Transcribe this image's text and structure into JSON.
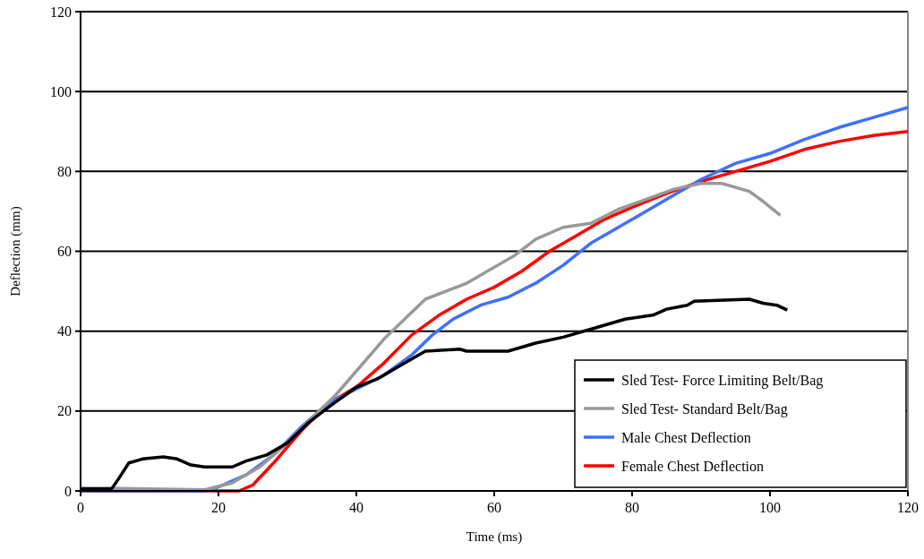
{
  "chart_data": {
    "type": "line",
    "xlabel": "Time (ms)",
    "ylabel": "Deflection (mm)",
    "xlim": [
      0,
      120
    ],
    "ylim": [
      0,
      120
    ],
    "xticks": [
      0,
      20,
      40,
      60,
      80,
      100,
      120
    ],
    "yticks": [
      0,
      20,
      40,
      60,
      80,
      100,
      120
    ],
    "grid": "y",
    "legend": "bottom right",
    "marker": "none",
    "line_style": "solid",
    "series": [
      {
        "name": "Sled Test- Force Limiting Belt/Bag",
        "color": "#000000",
        "x": [
          0,
          4.5,
          5.5,
          7,
          9,
          12,
          14,
          16,
          18,
          22,
          24,
          27,
          30,
          33,
          36,
          40,
          43,
          46,
          50,
          55,
          56,
          62,
          63,
          66,
          70,
          75,
          79,
          83,
          85,
          88,
          89,
          97,
          99,
          101,
          102.5
        ],
        "values": [
          0.5,
          0.5,
          3,
          7,
          8,
          8.5,
          8,
          6.5,
          6,
          6,
          7.5,
          9,
          12,
          17,
          21,
          26,
          28,
          31,
          35,
          35.5,
          35,
          35,
          35.5,
          37,
          38.5,
          41,
          43,
          44,
          45.5,
          46.5,
          47.5,
          48,
          47,
          46.5,
          45.3
        ]
      },
      {
        "name": "Sled Test- Standard Belt/Bag",
        "color": "#999999",
        "x": [
          0,
          4,
          18,
          22,
          26,
          30,
          34,
          37,
          40,
          44,
          47,
          50,
          53,
          56,
          59,
          63,
          66,
          70,
          74,
          78,
          82,
          86,
          90,
          93,
          95,
          97,
          99,
          101.5
        ],
        "values": [
          0.7,
          0.7,
          0.3,
          2,
          6,
          12,
          19,
          24,
          30,
          38,
          43,
          48,
          50,
          52,
          55,
          59,
          63,
          66,
          67,
          70.5,
          73,
          75.5,
          77,
          77,
          76,
          75,
          72.5,
          69
        ]
      },
      {
        "name": "Male Chest Deflection",
        "color": "#3f6fff",
        "x": [
          0,
          18,
          20,
          24,
          28,
          32,
          36,
          40,
          44,
          48,
          51,
          54,
          58,
          62,
          66,
          70,
          74,
          78,
          82,
          86,
          90,
          95,
          100,
          105,
          110,
          115,
          120
        ],
        "values": [
          0,
          0,
          1,
          4,
          9,
          16,
          22,
          25.5,
          29,
          34,
          39,
          43,
          46.5,
          48.5,
          52,
          56.5,
          62,
          66,
          70,
          74,
          78,
          82,
          84.5,
          88,
          91,
          93.5,
          96
        ]
      },
      {
        "name": "Female Chest Deflection",
        "color": "#ff0000",
        "x": [
          0,
          23,
          25,
          28,
          32,
          36,
          40,
          44,
          48,
          52,
          56,
          60,
          64,
          68,
          72,
          76,
          80,
          85,
          90,
          95,
          100,
          105,
          110,
          115,
          120
        ],
        "values": [
          0,
          0,
          1.5,
          7,
          15,
          22,
          26,
          32,
          39,
          44,
          48,
          51,
          55,
          60,
          64,
          68,
          71,
          74.5,
          77.5,
          80,
          82.5,
          85.5,
          87.5,
          89,
          90
        ]
      }
    ]
  }
}
